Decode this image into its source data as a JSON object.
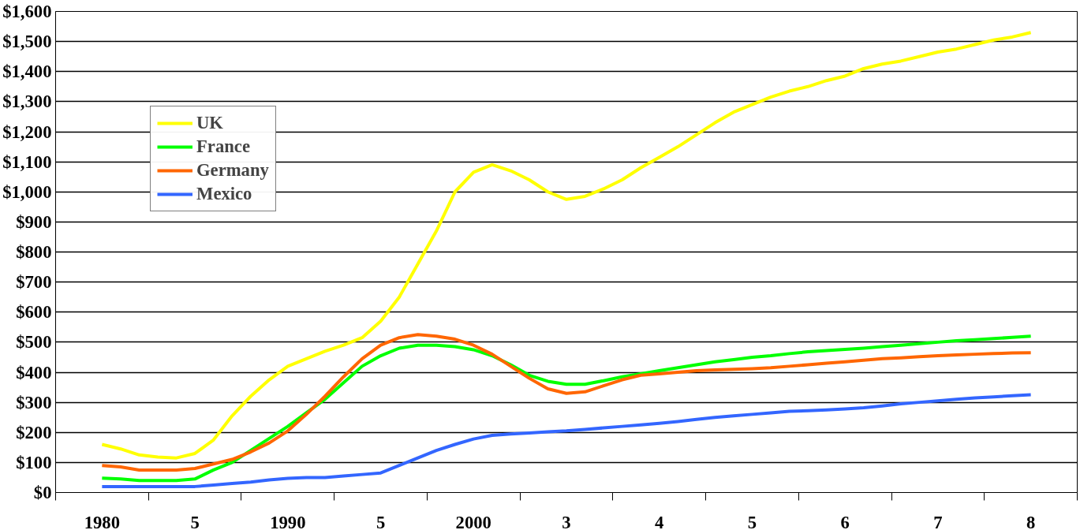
{
  "chart_data": {
    "type": "line",
    "categories": [
      "1980",
      null,
      null,
      null,
      null,
      "5",
      null,
      null,
      null,
      null,
      "1990",
      null,
      null,
      null,
      null,
      "5",
      null,
      null,
      null,
      null,
      "2000",
      null,
      null,
      null,
      null,
      "3",
      null,
      null,
      null,
      null,
      "4",
      null,
      null,
      null,
      null,
      "5",
      null,
      null,
      null,
      null,
      "6",
      null,
      null,
      null,
      null,
      "7",
      null,
      null,
      null,
      null,
      "8"
    ],
    "series": [
      {
        "name": "UK",
        "color": "#ffff00",
        "values": [
          160,
          145,
          125,
          118,
          115,
          130,
          175,
          255,
          320,
          375,
          420,
          445,
          470,
          490,
          515,
          570,
          650,
          760,
          870,
          1000,
          1065,
          1090,
          1070,
          1040,
          1000,
          975,
          985,
          1010,
          1040,
          1080,
          1115,
          1150,
          1190,
          1230,
          1265,
          1290,
          1315,
          1335,
          1350,
          1370,
          1385,
          1410,
          1425,
          1435,
          1450,
          1465,
          1475,
          1490,
          1505,
          1515,
          1530
        ]
      },
      {
        "name": "France",
        "color": "#00ff00",
        "values": [
          48,
          45,
          40,
          40,
          40,
          45,
          75,
          100,
          140,
          180,
          220,
          265,
          310,
          365,
          420,
          455,
          480,
          490,
          490,
          485,
          475,
          455,
          425,
          390,
          370,
          360,
          360,
          372,
          385,
          395,
          405,
          415,
          425,
          435,
          442,
          450,
          455,
          462,
          468,
          472,
          476,
          480,
          485,
          490,
          495,
          500,
          505,
          508,
          512,
          516,
          520
        ]
      },
      {
        "name": "Germany",
        "color": "#ff6600",
        "values": [
          90,
          85,
          75,
          75,
          75,
          80,
          95,
          110,
          135,
          165,
          205,
          260,
          320,
          385,
          445,
          490,
          515,
          525,
          520,
          510,
          490,
          460,
          420,
          380,
          345,
          330,
          335,
          355,
          375,
          390,
          395,
          400,
          405,
          408,
          410,
          412,
          415,
          420,
          425,
          430,
          435,
          440,
          445,
          448,
          452,
          455,
          458,
          460,
          462,
          464,
          465
        ]
      },
      {
        "name": "Mexico",
        "color": "#3366ff",
        "values": [
          20,
          20,
          20,
          20,
          20,
          20,
          25,
          30,
          35,
          42,
          47,
          50,
          50,
          55,
          60,
          65,
          90,
          115,
          140,
          160,
          178,
          190,
          195,
          198,
          202,
          205,
          210,
          215,
          220,
          225,
          230,
          236,
          243,
          250,
          255,
          260,
          265,
          270,
          272,
          275,
          278,
          282,
          288,
          295,
          300,
          305,
          310,
          315,
          318,
          322,
          325
        ]
      }
    ],
    "ylim": [
      0,
      1600
    ],
    "yticks": [
      {
        "value": 0,
        "label": "$0"
      },
      {
        "value": 100,
        "label": "$100"
      },
      {
        "value": 200,
        "label": "$200"
      },
      {
        "value": 300,
        "label": "$300"
      },
      {
        "value": 400,
        "label": "$400"
      },
      {
        "value": 500,
        "label": "$500"
      },
      {
        "value": 600,
        "label": "$600"
      },
      {
        "value": 700,
        "label": "$700"
      },
      {
        "value": 800,
        "label": "$800"
      },
      {
        "value": 900,
        "label": "$900"
      },
      {
        "value": 1000,
        "label": "$1,000"
      },
      {
        "value": 1100,
        "label": "$1,100"
      },
      {
        "value": 1200,
        "label": "$1,200"
      },
      {
        "value": 1300,
        "label": "$1,300"
      },
      {
        "value": 1400,
        "label": "$1,400"
      },
      {
        "value": 1500,
        "label": "$1,500"
      },
      {
        "value": 1600,
        "label": "$1,600"
      }
    ],
    "grid": "y",
    "legend": "top left",
    "marker": "none",
    "line_style": "solid"
  }
}
